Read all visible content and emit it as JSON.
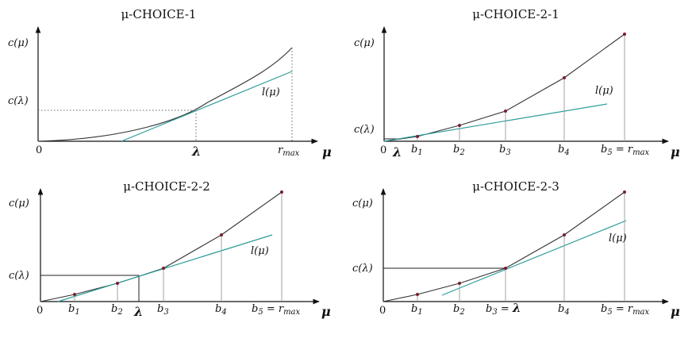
{
  "panels": [
    {
      "title": "μ-CHOICE-1",
      "y_axis_label": "c(μ)",
      "x_axis_label": "μ",
      "c_lambda_label": "c(λ)",
      "origin_label": "0",
      "lambda_label": "λ",
      "r_max_label": "r",
      "r_max_sub": "max",
      "tangent_label": "l(μ)"
    },
    {
      "title": "μ-CHOICE-2-1",
      "y_axis_label": "c(μ)",
      "x_axis_label": "μ",
      "c_lambda_label": "c(λ)",
      "origin_label": "0",
      "lambda_label": "λ",
      "tangent_label": "l(μ)",
      "breakpoints": [
        {
          "name": "b",
          "sub": "1"
        },
        {
          "name": "b",
          "sub": "2"
        },
        {
          "name": "b",
          "sub": "3"
        },
        {
          "name": "b",
          "sub": "4"
        },
        {
          "name": "b",
          "sub": "5",
          "suffix": " = r",
          "suffix_sub": "max"
        }
      ]
    },
    {
      "title": "μ-CHOICE-2-2",
      "y_axis_label": "c(μ)",
      "x_axis_label": "μ",
      "c_lambda_label": "c(λ)",
      "origin_label": "0",
      "lambda_label": "λ",
      "tangent_label": "l(μ)",
      "breakpoints": [
        {
          "name": "b",
          "sub": "1"
        },
        {
          "name": "b",
          "sub": "2"
        },
        {
          "name": "b",
          "sub": "3"
        },
        {
          "name": "b",
          "sub": "4"
        },
        {
          "name": "b",
          "sub": "5",
          "suffix": " = r",
          "suffix_sub": "max"
        }
      ]
    },
    {
      "title": "μ-CHOICE-2-3",
      "y_axis_label": "c(μ)",
      "x_axis_label": "μ",
      "c_lambda_label": "c(λ)",
      "origin_label": "0",
      "tangent_label": "l(μ)",
      "breakpoints": [
        {
          "name": "b",
          "sub": "1"
        },
        {
          "name": "b",
          "sub": "2"
        },
        {
          "name": "b",
          "sub": "3",
          "suffix": " = ",
          "suffix_big": "λ"
        },
        {
          "name": "b",
          "sub": "4"
        },
        {
          "name": "b",
          "sub": "5",
          "suffix": " = r",
          "suffix_sub": "max"
        }
      ]
    }
  ]
}
